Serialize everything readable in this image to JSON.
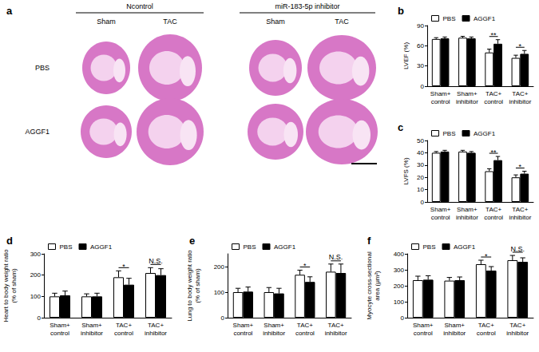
{
  "image_panel": {
    "title": "a",
    "groups": [
      "Ncontrol",
      "miR-183-5p inhibitor"
    ],
    "columns": [
      "Sham",
      "TAC",
      "Sham",
      "TAC"
    ],
    "rows": [
      "PBS",
      "AGGF1"
    ]
  },
  "chart_data": [
    {
      "type": "bar",
      "title": "b",
      "ylabel": "LVEF (%)",
      "categories": [
        "Sham+\ncontrol",
        "Sham+\ninhibitor",
        "TAC+\ncontrol",
        "TAC+\ninhibitor"
      ],
      "series": [
        {
          "name": "PBS",
          "color": "#ffffff",
          "values": [
            70,
            72,
            50,
            42
          ],
          "errors": [
            2,
            2,
            5,
            4
          ]
        },
        {
          "name": "AGGF1",
          "color": "#000000",
          "values": [
            71,
            71,
            63,
            48
          ],
          "errors": [
            2,
            2,
            6,
            5
          ]
        }
      ],
      "annotations": [
        {
          "category": "TAC+\ncontrol",
          "text": "**"
        },
        {
          "category": "TAC+\ninhibitor",
          "text": "*"
        }
      ],
      "ylim": [
        0,
        90
      ],
      "yticks": [
        0,
        30,
        60,
        90
      ],
      "grid": false,
      "legend": "top-left"
    },
    {
      "type": "bar",
      "title": "c",
      "ylabel": "LVFS (%)",
      "categories": [
        "Sham+\ncontrol",
        "Sham+\ninhibitor",
        "TAC+\ncontrol",
        "TAC+\ninhibitor"
      ],
      "series": [
        {
          "name": "PBS",
          "color": "#ffffff",
          "values": [
            40,
            41,
            25,
            20
          ],
          "errors": [
            1,
            1,
            2,
            2
          ]
        },
        {
          "name": "AGGF1",
          "color": "#000000",
          "values": [
            41,
            40,
            34,
            23
          ],
          "errors": [
            1,
            1,
            3,
            2
          ]
        }
      ],
      "annotations": [
        {
          "category": "TAC+\ncontrol",
          "text": "**"
        },
        {
          "category": "TAC+\ninhibitor",
          "text": "*"
        }
      ],
      "ylim": [
        0,
        50
      ],
      "yticks": [
        0,
        10,
        20,
        30,
        40,
        50
      ],
      "grid": false,
      "legend": "top-left"
    },
    {
      "type": "bar",
      "title": "d",
      "ylabel": "Heart to body weight ratio\n(% of sham)",
      "categories": [
        "Sham+\ncontrol",
        "Sham+\ninhibitor",
        "TAC+\ncontrol",
        "TAC+\ninhibitor"
      ],
      "series": [
        {
          "name": "PBS",
          "color": "#ffffff",
          "values": [
            100,
            100,
            190,
            210
          ],
          "errors": [
            15,
            12,
            30,
            25
          ]
        },
        {
          "name": "AGGF1",
          "color": "#000000",
          "values": [
            105,
            100,
            155,
            200
          ],
          "errors": [
            20,
            15,
            30,
            30
          ]
        }
      ],
      "annotations": [
        {
          "category": "TAC+\ncontrol",
          "text": "*"
        },
        {
          "category": "TAC+\ninhibitor",
          "text": "N.S."
        }
      ],
      "ylim": [
        0,
        300
      ],
      "yticks": [
        0,
        100,
        200,
        300
      ],
      "grid": false,
      "legend": "top-left"
    },
    {
      "type": "bar",
      "title": "e",
      "ylabel": "Lung to body weight ratio\n(% of sham)",
      "categories": [
        "Sham+\ncontrol",
        "Sham+\ninhibitor",
        "TAC+\ncontrol",
        "TAC+\ninhibitor"
      ],
      "series": [
        {
          "name": "PBS",
          "color": "#ffffff",
          "values": [
            100,
            100,
            168,
            180
          ],
          "errors": [
            15,
            18,
            18,
            30
          ]
        },
        {
          "name": "AGGF1",
          "color": "#000000",
          "values": [
            102,
            95,
            140,
            175
          ],
          "errors": [
            18,
            20,
            20,
            35
          ]
        }
      ],
      "annotations": [
        {
          "category": "TAC+\ncontrol",
          "text": "*"
        },
        {
          "category": "TAC+\ninhibitor",
          "text": "N.S."
        }
      ],
      "ylim": [
        0,
        250
      ],
      "yticks": [
        0,
        100,
        200
      ],
      "grid": false,
      "legend": "top-left"
    },
    {
      "type": "bar",
      "title": "f",
      "ylabel": "Myocyte cross-sectional\narea (μm²)",
      "categories": [
        "Sham+\ncontrol",
        "Sham+\ninhibitor",
        "TAC+\ncontrol",
        "TAC+\ninhibitor"
      ],
      "series": [
        {
          "name": "PBS",
          "color": "#ffffff",
          "values": [
            235,
            232,
            335,
            360
          ],
          "errors": [
            25,
            20,
            25,
            30
          ]
        },
        {
          "name": "AGGF1",
          "color": "#000000",
          "values": [
            238,
            235,
            295,
            350
          ],
          "errors": [
            25,
            20,
            25,
            25
          ]
        }
      ],
      "annotations": [
        {
          "category": "TAC+\ncontrol",
          "text": "*"
        },
        {
          "category": "TAC+\ninhibitor",
          "text": "N.S."
        }
      ],
      "ylim": [
        0,
        400
      ],
      "yticks": [
        0,
        100,
        200,
        300,
        400
      ],
      "grid": false,
      "legend": "top-left"
    }
  ]
}
